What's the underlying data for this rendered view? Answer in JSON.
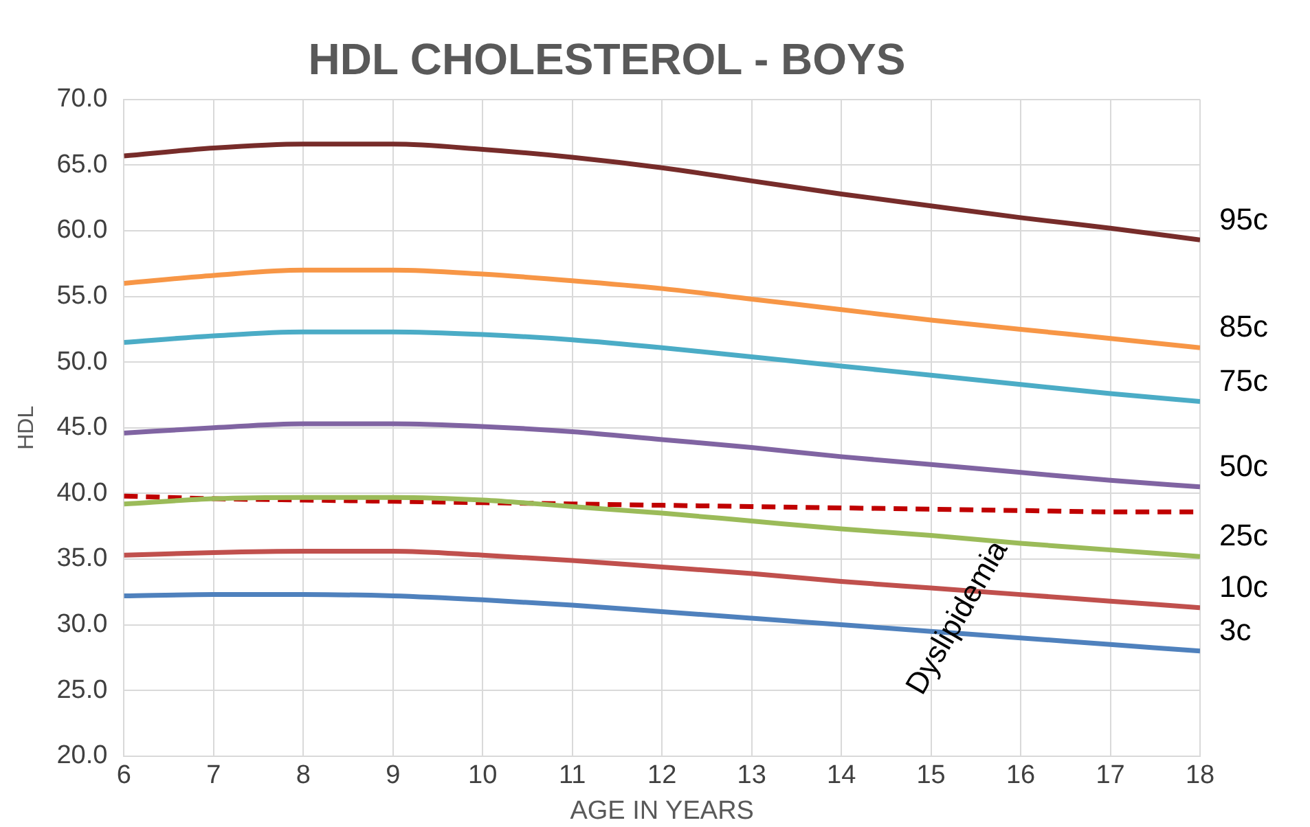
{
  "chart_data": {
    "type": "line",
    "title": "HDL CHOLESTEROL - BOYS",
    "xlabel": "AGE IN YEARS",
    "ylabel": "HDL",
    "x": [
      6,
      7,
      8,
      9,
      10,
      11,
      12,
      13,
      14,
      15,
      16,
      17,
      18
    ],
    "series": [
      {
        "name": "95c",
        "color": "#772c2a",
        "values": [
          65.7,
          66.3,
          66.6,
          66.6,
          66.2,
          65.6,
          64.8,
          63.8,
          62.8,
          61.9,
          61.0,
          60.2,
          59.3
        ]
      },
      {
        "name": "85c",
        "color": "#f79646",
        "values": [
          56.0,
          56.6,
          57.0,
          57.0,
          56.7,
          56.2,
          55.6,
          54.8,
          54.0,
          53.2,
          52.5,
          51.8,
          51.1
        ]
      },
      {
        "name": "75c",
        "color": "#4bacc6",
        "values": [
          51.5,
          52.0,
          52.3,
          52.3,
          52.1,
          51.7,
          51.1,
          50.4,
          49.7,
          49.0,
          48.3,
          47.6,
          47.0
        ]
      },
      {
        "name": "50c",
        "color": "#8064a2",
        "values": [
          44.6,
          45.0,
          45.3,
          45.3,
          45.1,
          44.7,
          44.1,
          43.5,
          42.8,
          42.2,
          41.6,
          41.0,
          40.5
        ]
      },
      {
        "name": "25c",
        "color": "#9bbb59",
        "values": [
          39.2,
          39.6,
          39.7,
          39.7,
          39.5,
          39.0,
          38.5,
          37.9,
          37.3,
          36.8,
          36.2,
          35.7,
          35.2
        ]
      },
      {
        "name": "10c",
        "color": "#c0504d",
        "values": [
          35.3,
          35.5,
          35.6,
          35.6,
          35.3,
          34.9,
          34.4,
          33.9,
          33.3,
          32.8,
          32.3,
          31.8,
          31.3
        ]
      },
      {
        "name": "3c",
        "color": "#4f81bd",
        "values": [
          32.2,
          32.3,
          32.3,
          32.2,
          31.9,
          31.5,
          31.0,
          30.5,
          30.0,
          29.5,
          29.0,
          28.5,
          28.0
        ]
      },
      {
        "color": "#c00000",
        "line_style": "dashed",
        "values": [
          39.8,
          39.6,
          39.5,
          39.4,
          39.3,
          39.2,
          39.1,
          39.0,
          38.9,
          38.8,
          38.7,
          38.6,
          38.6
        ]
      }
    ],
    "annotations": [
      "Dyslipidemia"
    ],
    "xlim": [
      6,
      18
    ],
    "xticks": [
      6,
      7,
      8,
      9,
      10,
      11,
      12,
      13,
      14,
      15,
      16,
      17,
      18
    ],
    "ylim": [
      20,
      70
    ],
    "yticks": [
      {
        "value": 20,
        "label": "20.0"
      },
      {
        "value": 25,
        "label": "25.0"
      },
      {
        "value": 30,
        "label": "30.0"
      },
      {
        "value": 35,
        "label": "35.0"
      },
      {
        "value": 40,
        "label": "40.0"
      },
      {
        "value": 45,
        "label": "45.0"
      },
      {
        "value": 50,
        "label": "50.0"
      },
      {
        "value": 55,
        "label": "55.0"
      },
      {
        "value": 60,
        "label": "60.0"
      },
      {
        "value": 65,
        "label": "65.0"
      },
      {
        "value": 70,
        "label": "70.0"
      }
    ],
    "grid": true,
    "legend": false,
    "marker": "none",
    "line_style": "solid"
  }
}
